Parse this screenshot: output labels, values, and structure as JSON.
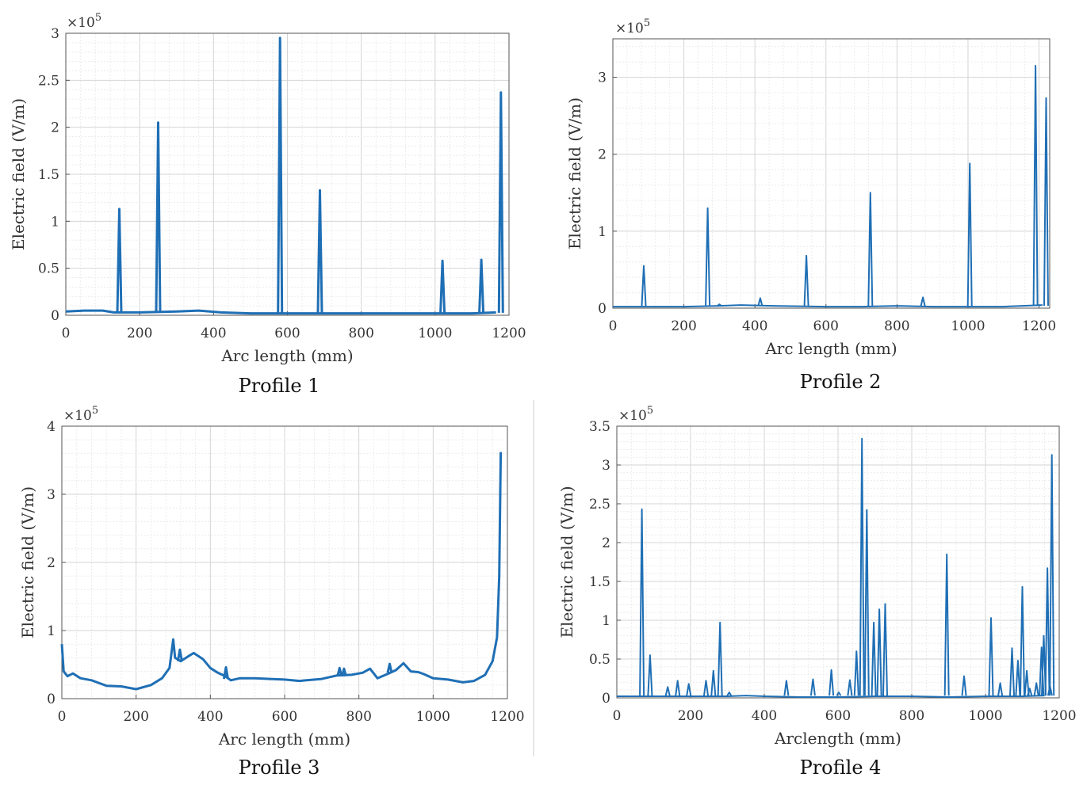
{
  "line_color": "#1f6fb5",
  "chart_data": [
    {
      "type": "line",
      "caption": "Profile 1",
      "xlabel": "Arc length (mm)",
      "ylabel": "Electric field (V/m)",
      "y_multiplier_base": "×10",
      "y_multiplier_exp": "5",
      "xlim": [
        0,
        1200
      ],
      "ylim": [
        0,
        3
      ],
      "xticks": [
        0,
        200,
        400,
        600,
        800,
        1000,
        1200
      ],
      "xtick_labels": [
        "0",
        "200",
        "400",
        "600",
        "800",
        "1000",
        "1200"
      ],
      "yticks": [
        0,
        0.5,
        1,
        1.5,
        2,
        2.5,
        3
      ],
      "ytick_labels": [
        "0",
        "0.5",
        "1",
        "1.5",
        "2",
        "2.5",
        "3"
      ],
      "grid": true,
      "baseline": [
        [
          0,
          0.04
        ],
        [
          50,
          0.05
        ],
        [
          100,
          0.05
        ],
        [
          130,
          0.03
        ],
        [
          200,
          0.03
        ],
        [
          300,
          0.04
        ],
        [
          360,
          0.05
        ],
        [
          420,
          0.03
        ],
        [
          500,
          0.02
        ],
        [
          560,
          0.02
        ],
        [
          650,
          0.02
        ],
        [
          700,
          0.02
        ],
        [
          800,
          0.02
        ],
        [
          900,
          0.02
        ],
        [
          1000,
          0.02
        ],
        [
          1100,
          0.02
        ],
        [
          1165,
          0.03
        ]
      ],
      "spikes": [
        {
          "x": 145,
          "y": 1.13
        },
        {
          "x": 250,
          "y": 2.05
        },
        {
          "x": 580,
          "y": 2.95
        },
        {
          "x": 688,
          "y": 1.33
        },
        {
          "x": 1020,
          "y": 0.58
        },
        {
          "x": 1125,
          "y": 0.59
        },
        {
          "x": 1178,
          "y": 2.37
        }
      ]
    },
    {
      "type": "line",
      "caption": "Profile 2",
      "xlabel": "Arc length (mm)",
      "ylabel": "Electric field (V/m)",
      "y_multiplier_base": "×10",
      "y_multiplier_exp": "5",
      "xlim": [
        0,
        1230
      ],
      "ylim": [
        0,
        3.5
      ],
      "xticks": [
        0,
        200,
        400,
        600,
        800,
        1000,
        1200
      ],
      "xtick_labels": [
        "0",
        "200",
        "400",
        "600",
        "800",
        "1000",
        "1200"
      ],
      "yticks": [
        0,
        1,
        2,
        3
      ],
      "ytick_labels": [
        "0",
        "1",
        "2",
        "3"
      ],
      "grid": true,
      "baseline": [
        [
          0,
          0.02
        ],
        [
          100,
          0.02
        ],
        [
          200,
          0.02
        ],
        [
          300,
          0.03
        ],
        [
          360,
          0.04
        ],
        [
          450,
          0.03
        ],
        [
          600,
          0.02
        ],
        [
          700,
          0.02
        ],
        [
          800,
          0.03
        ],
        [
          900,
          0.02
        ],
        [
          1000,
          0.02
        ],
        [
          1100,
          0.02
        ],
        [
          1210,
          0.04
        ]
      ],
      "spikes": [
        {
          "x": 87,
          "y": 0.55
        },
        {
          "x": 267,
          "y": 1.3
        },
        {
          "x": 300,
          "y": 0.05
        },
        {
          "x": 415,
          "y": 0.13
        },
        {
          "x": 545,
          "y": 0.68
        },
        {
          "x": 725,
          "y": 1.5
        },
        {
          "x": 873,
          "y": 0.14
        },
        {
          "x": 1005,
          "y": 1.88
        },
        {
          "x": 1190,
          "y": 3.15
        },
        {
          "x": 1220,
          "y": 2.73
        }
      ]
    },
    {
      "type": "line",
      "caption": "Profile 3",
      "xlabel": "Arc length (mm)",
      "ylabel": "Electric field (V/m)",
      "y_multiplier_base": "×10",
      "y_multiplier_exp": "5",
      "xlim": [
        0,
        1200
      ],
      "ylim": [
        0,
        4
      ],
      "xticks": [
        0,
        200,
        400,
        600,
        800,
        1000,
        1200
      ],
      "xtick_labels": [
        "0",
        "200",
        "400",
        "600",
        "800",
        "1000",
        "1200"
      ],
      "yticks": [
        0,
        1,
        2,
        3,
        4
      ],
      "ytick_labels": [
        "0",
        "1",
        "2",
        "3",
        "4"
      ],
      "grid": true,
      "curve": [
        [
          0,
          0.8
        ],
        [
          5,
          0.4
        ],
        [
          15,
          0.33
        ],
        [
          30,
          0.37
        ],
        [
          50,
          0.3
        ],
        [
          80,
          0.27
        ],
        [
          120,
          0.19
        ],
        [
          160,
          0.18
        ],
        [
          200,
          0.14
        ],
        [
          240,
          0.2
        ],
        [
          270,
          0.3
        ],
        [
          290,
          0.45
        ],
        [
          300,
          0.87
        ],
        [
          305,
          0.6
        ],
        [
          320,
          0.55
        ],
        [
          340,
          0.62
        ],
        [
          355,
          0.67
        ],
        [
          380,
          0.58
        ],
        [
          400,
          0.45
        ],
        [
          420,
          0.38
        ],
        [
          440,
          0.33
        ],
        [
          455,
          0.27
        ],
        [
          480,
          0.3
        ],
        [
          520,
          0.3
        ],
        [
          560,
          0.29
        ],
        [
          600,
          0.28
        ],
        [
          640,
          0.26
        ],
        [
          700,
          0.29
        ],
        [
          740,
          0.34
        ],
        [
          780,
          0.35
        ],
        [
          810,
          0.38
        ],
        [
          830,
          0.44
        ],
        [
          850,
          0.3
        ],
        [
          880,
          0.37
        ],
        [
          900,
          0.42
        ],
        [
          920,
          0.52
        ],
        [
          940,
          0.4
        ],
        [
          960,
          0.39
        ],
        [
          975,
          0.36
        ],
        [
          1000,
          0.3
        ],
        [
          1040,
          0.28
        ],
        [
          1080,
          0.24
        ],
        [
          1110,
          0.26
        ],
        [
          1140,
          0.35
        ],
        [
          1160,
          0.55
        ],
        [
          1172,
          0.9
        ],
        [
          1178,
          1.8
        ],
        [
          1182,
          3.62
        ]
      ],
      "spikes": [
        {
          "x": 318,
          "y": 0.72,
          "base": 0.55
        },
        {
          "x": 442,
          "y": 0.46,
          "base": 0.29
        },
        {
          "x": 748,
          "y": 0.45,
          "base": 0.33
        },
        {
          "x": 760,
          "y": 0.44,
          "base": 0.33
        },
        {
          "x": 883,
          "y": 0.51,
          "base": 0.38
        }
      ]
    },
    {
      "type": "line",
      "caption": "Profile 4",
      "xlabel": "Arclength (mm)",
      "ylabel": "Electric field (V/m)",
      "y_multiplier_base": "×10",
      "y_multiplier_exp": "5",
      "xlim": [
        0,
        1200
      ],
      "ylim": [
        0,
        3.5
      ],
      "xticks": [
        0,
        200,
        400,
        600,
        800,
        1000,
        1200
      ],
      "xtick_labels": [
        "0",
        "200",
        "400",
        "600",
        "800",
        "1000",
        "1200"
      ],
      "yticks": [
        0,
        0.5,
        1,
        1.5,
        2,
        2.5,
        3,
        3.5
      ],
      "ytick_labels": [
        "0",
        "0.5",
        "1",
        "1.5",
        "2",
        "2.5",
        "3",
        "3.5"
      ],
      "grid": true,
      "baseline": [
        [
          0,
          0.02
        ],
        [
          100,
          0.02
        ],
        [
          200,
          0.02
        ],
        [
          300,
          0.02
        ],
        [
          350,
          0.03
        ],
        [
          400,
          0.02
        ],
        [
          500,
          0.01
        ],
        [
          600,
          0.01
        ],
        [
          700,
          0.02
        ],
        [
          800,
          0.02
        ],
        [
          900,
          0.01
        ],
        [
          1000,
          0.02
        ],
        [
          1100,
          0.02
        ],
        [
          1160,
          0.03
        ]
      ],
      "spikes": [
        {
          "x": 68,
          "y": 2.43
        },
        {
          "x": 90,
          "y": 0.55
        },
        {
          "x": 138,
          "y": 0.14
        },
        {
          "x": 165,
          "y": 0.22
        },
        {
          "x": 195,
          "y": 0.18
        },
        {
          "x": 242,
          "y": 0.22
        },
        {
          "x": 262,
          "y": 0.35
        },
        {
          "x": 280,
          "y": 0.97
        },
        {
          "x": 305,
          "y": 0.07
        },
        {
          "x": 460,
          "y": 0.22
        },
        {
          "x": 532,
          "y": 0.24
        },
        {
          "x": 582,
          "y": 0.36
        },
        {
          "x": 602,
          "y": 0.07
        },
        {
          "x": 632,
          "y": 0.23
        },
        {
          "x": 650,
          "y": 0.6
        },
        {
          "x": 665,
          "y": 3.34
        },
        {
          "x": 678,
          "y": 2.42
        },
        {
          "x": 697,
          "y": 0.97
        },
        {
          "x": 712,
          "y": 1.14
        },
        {
          "x": 728,
          "y": 1.21
        },
        {
          "x": 895,
          "y": 1.85
        },
        {
          "x": 942,
          "y": 0.28
        },
        {
          "x": 1015,
          "y": 1.03
        },
        {
          "x": 1040,
          "y": 0.19
        },
        {
          "x": 1072,
          "y": 0.64
        },
        {
          "x": 1088,
          "y": 0.48
        },
        {
          "x": 1100,
          "y": 1.43
        },
        {
          "x": 1112,
          "y": 0.35
        },
        {
          "x": 1120,
          "y": 0.12
        },
        {
          "x": 1138,
          "y": 0.19
        },
        {
          "x": 1152,
          "y": 0.65
        },
        {
          "x": 1158,
          "y": 0.8
        },
        {
          "x": 1168,
          "y": 1.67
        },
        {
          "x": 1175,
          "y": 0.15
        },
        {
          "x": 1180,
          "y": 3.13
        }
      ]
    }
  ]
}
